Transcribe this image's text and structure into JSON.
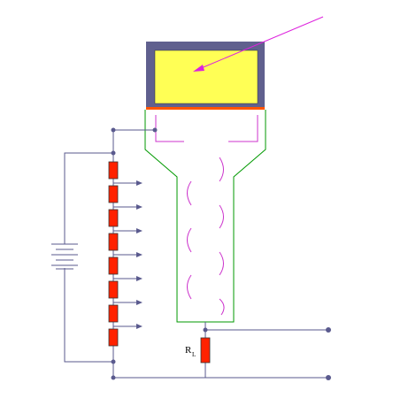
{
  "labels": {
    "load_resistor_main": "R",
    "load_resistor_sub": "L"
  },
  "colors": {
    "wire": "#5a5a8e",
    "node": "#5a5a8e",
    "resistor_fill": "#ff2200",
    "resistor_stroke": "#333333",
    "scintillator_fill": "#ffff55",
    "scintillator_housing": "#60608e",
    "photocathode_layer": "#ff5500",
    "tube_outline": "#009900",
    "electron_path": "#cc33cc",
    "photon_arrow": "#dd22dd",
    "background": "#ffffff"
  },
  "icons": {
    "battery": "battery-icon",
    "incoming_particle": "arrow-icon"
  }
}
